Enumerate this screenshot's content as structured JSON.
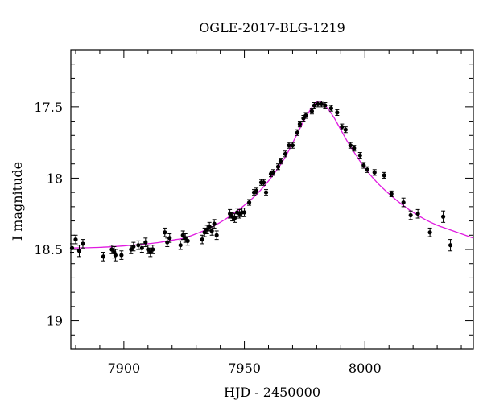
{
  "chart_data": {
    "type": "scatter",
    "title": "OGLE-2017-BLG-1219",
    "xlabel": "HJD - 2450000",
    "ylabel": "I magnitude",
    "xlim": [
      7878,
      8045
    ],
    "ylim": [
      19.2,
      17.1
    ],
    "y_inverted": true,
    "x_ticks": [
      7900,
      7950,
      8000
    ],
    "y_ticks": [
      17.5,
      18,
      18.5,
      19
    ],
    "x_tick_labels": [
      "7900",
      "7950",
      "8000"
    ],
    "y_tick_labels": [
      "17.5",
      "18",
      "18.5",
      "19"
    ],
    "grid": false,
    "legend": "none",
    "colors": {
      "data": "#000000",
      "model": "#e01be0"
    },
    "series": [
      {
        "type": "scatter",
        "x": [
          7878.5,
          7880.0,
          7881.5,
          7883.0,
          7891.5,
          7895.0,
          7896.0,
          7896.5,
          7899.0,
          7903.0,
          7904.0,
          7906.0,
          7907.5,
          7909.0,
          7910.0,
          7911.0,
          7912.0,
          7917.0,
          7918.0,
          7919.0,
          7923.5,
          7924.5,
          7925.5,
          7926.5,
          7932.5,
          7933.5,
          7934.5,
          7935.5,
          7936.5,
          7937.5,
          7938.5,
          7944.0,
          7945.0,
          7946.0,
          7947.0,
          7948.0,
          7949.0,
          7950.0,
          7952.0,
          7954.0,
          7955.0,
          7957.0,
          7958.0,
          7959.0,
          7961.0,
          7962.0,
          7964.0,
          7965.0,
          7967.0,
          7968.5,
          7970.0,
          7972.0,
          7973.0,
          7974.5,
          7975.5,
          7978.0,
          7979.0,
          7980.5,
          7982.0,
          7983.5,
          7986.0,
          7988.5,
          7990.5,
          7992.0,
          7994.0,
          7995.5,
          7998.0,
          7999.5,
          8001.0,
          8004.0,
          8008.0,
          8011.0,
          8016.0,
          8019.0,
          8022.0,
          8027.0,
          8032.5,
          8035.5
        ],
        "y": [
          18.49,
          18.43,
          18.51,
          18.46,
          18.55,
          18.5,
          18.52,
          18.54,
          18.54,
          18.5,
          18.48,
          18.47,
          18.49,
          18.45,
          18.5,
          18.52,
          18.5,
          18.38,
          18.45,
          18.42,
          18.47,
          18.4,
          18.42,
          18.44,
          18.43,
          18.38,
          18.36,
          18.34,
          18.37,
          18.32,
          18.4,
          18.25,
          18.27,
          18.28,
          18.24,
          18.25,
          18.24,
          18.24,
          18.17,
          18.1,
          18.09,
          18.03,
          18.03,
          18.1,
          17.97,
          17.96,
          17.92,
          17.88,
          17.83,
          17.77,
          17.77,
          17.68,
          17.62,
          17.58,
          17.56,
          17.53,
          17.49,
          17.48,
          17.48,
          17.49,
          17.51,
          17.54,
          17.64,
          17.66,
          17.77,
          17.79,
          17.84,
          17.91,
          17.94,
          17.96,
          17.98,
          18.11,
          18.17,
          18.26,
          18.25,
          18.38,
          18.27,
          18.47
        ],
        "err": [
          0.03,
          0.03,
          0.04,
          0.03,
          0.03,
          0.03,
          0.04,
          0.04,
          0.03,
          0.03,
          0.03,
          0.03,
          0.03,
          0.03,
          0.03,
          0.03,
          0.03,
          0.03,
          0.03,
          0.03,
          0.03,
          0.03,
          0.03,
          0.03,
          0.03,
          0.03,
          0.03,
          0.03,
          0.03,
          0.03,
          0.03,
          0.03,
          0.03,
          0.03,
          0.03,
          0.03,
          0.03,
          0.03,
          0.02,
          0.02,
          0.02,
          0.02,
          0.02,
          0.02,
          0.02,
          0.02,
          0.02,
          0.02,
          0.02,
          0.02,
          0.02,
          0.02,
          0.02,
          0.02,
          0.02,
          0.02,
          0.02,
          0.02,
          0.02,
          0.02,
          0.02,
          0.02,
          0.02,
          0.02,
          0.02,
          0.02,
          0.02,
          0.02,
          0.02,
          0.02,
          0.02,
          0.02,
          0.03,
          0.03,
          0.03,
          0.03,
          0.04,
          0.04
        ]
      },
      {
        "type": "line",
        "x": [
          7878,
          7890,
          7900,
          7910,
          7915,
          7920,
          7925,
          7930,
          7935,
          7940,
          7945,
          7950,
          7955,
          7960,
          7965,
          7968,
          7971,
          7974,
          7977,
          7979,
          7980.5,
          7982,
          7984,
          7987,
          7990,
          7993,
          7996,
          8000,
          8005,
          8010,
          8015,
          8020,
          8025,
          8030,
          8035,
          8040,
          8045
        ],
        "y": [
          18.49,
          18.485,
          18.475,
          18.46,
          18.45,
          18.435,
          18.42,
          18.39,
          18.355,
          18.31,
          18.255,
          18.19,
          18.115,
          18.02,
          17.905,
          17.82,
          17.72,
          17.62,
          17.53,
          17.48,
          17.46,
          17.47,
          17.5,
          17.57,
          17.66,
          17.75,
          17.83,
          17.93,
          18.03,
          18.11,
          18.18,
          18.24,
          18.29,
          18.33,
          18.36,
          18.39,
          18.42
        ]
      }
    ]
  }
}
